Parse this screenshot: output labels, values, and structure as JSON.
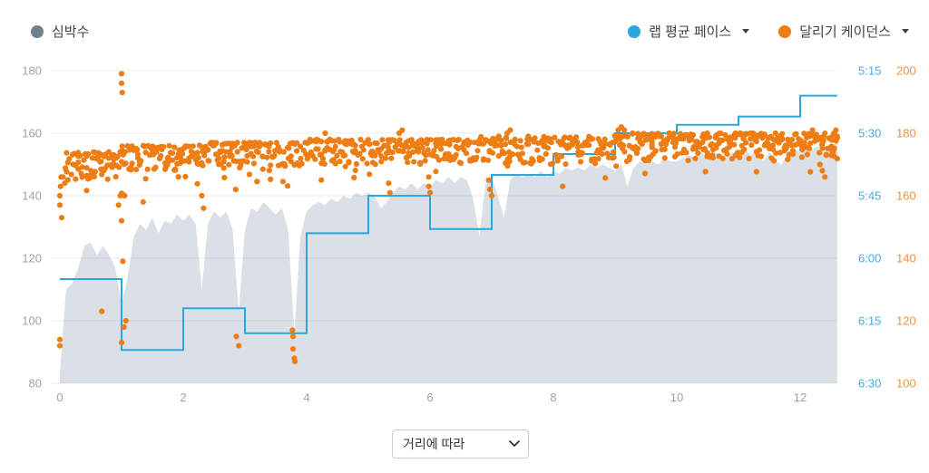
{
  "legend": {
    "heart_rate": {
      "label": "심박수",
      "dot_color": "#71808f"
    },
    "pace": {
      "label": "랩 평균 페이스",
      "dot_color": "#2aa7e0",
      "has_dropdown": true
    },
    "cadence": {
      "label": "달리기 케이던스",
      "dot_color": "#ee7d14",
      "has_dropdown": true
    }
  },
  "controls": {
    "x_mode_select": {
      "value": "거리에 따라",
      "options": [
        "거리에 따라"
      ]
    }
  },
  "chart_data": {
    "type": "mixed",
    "grid_color": "rgba(33,43,54,0.08)",
    "x_axis": {
      "ticks": [
        0,
        2,
        4,
        6,
        8,
        10,
        12
      ],
      "min": 0,
      "max": 12.6,
      "unit": "km",
      "tick_color": "#9ba4ad"
    },
    "y_axes": {
      "heart_rate": {
        "side": "left",
        "min": 80,
        "max": 180,
        "ticks": [
          180,
          160,
          140,
          120,
          100,
          80
        ],
        "tick_color": "#9ba4ad"
      },
      "pace": {
        "side": "right",
        "ticks": [
          "5:15",
          "5:30",
          "5:45",
          "6:00",
          "6:15",
          "6:30"
        ],
        "tick_color": "#45ace3"
      },
      "cadence": {
        "side": "right",
        "min": 100,
        "max": 200,
        "ticks": [
          200,
          180,
          160,
          140,
          120,
          100
        ],
        "tick_color": "#f2923c"
      }
    },
    "series": [
      {
        "name": "심박수",
        "type": "area",
        "axis": "heart_rate",
        "color": "#dae0e5",
        "points_start": 0,
        "points_step": 0.1,
        "values": [
          83,
          110,
          112,
          117,
          124,
          125,
          121,
          124,
          121,
          117,
          105,
          114,
          127,
          131,
          129,
          133,
          128,
          132,
          131,
          134,
          132,
          134,
          131,
          110,
          131,
          135,
          133,
          135,
          129,
          103,
          129,
          136,
          135,
          138,
          136,
          134,
          136,
          129,
          96,
          127,
          135,
          137,
          138,
          137,
          139,
          138,
          140,
          139,
          141,
          140,
          141,
          140,
          136,
          138,
          141,
          143,
          142,
          144,
          142,
          144,
          143,
          145,
          144,
          146,
          144,
          146,
          145,
          139,
          127,
          144,
          146,
          140,
          133,
          145,
          147,
          146,
          147,
          146,
          148,
          146,
          148,
          147,
          149,
          148,
          149,
          148,
          150,
          149,
          150,
          149,
          148,
          150,
          143,
          149,
          151,
          150,
          151,
          150,
          152,
          151,
          151,
          152,
          153,
          152,
          154,
          152,
          154,
          153,
          152,
          154,
          153,
          155,
          153,
          155,
          151,
          154,
          151,
          150,
          154,
          155,
          154,
          156,
          155,
          156,
          154,
          156,
          157
        ]
      },
      {
        "name": "랩 평균 페이스",
        "type": "step-line",
        "axis": "pace",
        "color": "#2aa7e0",
        "laps": [
          {
            "km_start": 0,
            "km_end": 1,
            "pace": "6:05"
          },
          {
            "km_start": 1,
            "km_end": 2,
            "pace": "6:22"
          },
          {
            "km_start": 2,
            "km_end": 3,
            "pace": "6:12"
          },
          {
            "km_start": 3,
            "km_end": 4,
            "pace": "6:18"
          },
          {
            "km_start": 4,
            "km_end": 5,
            "pace": "5:54"
          },
          {
            "km_start": 5,
            "km_end": 6,
            "pace": "5:45"
          },
          {
            "km_start": 6,
            "km_end": 7,
            "pace": "5:53"
          },
          {
            "km_start": 7,
            "km_end": 8,
            "pace": "5:40"
          },
          {
            "km_start": 8,
            "km_end": 9,
            "pace": "5:35"
          },
          {
            "km_start": 9,
            "km_end": 10,
            "pace": "5:30"
          },
          {
            "km_start": 10,
            "km_end": 11,
            "pace": "5:28"
          },
          {
            "km_start": 11,
            "km_end": 12,
            "pace": "5:26"
          },
          {
            "km_start": 12,
            "km_end": 12.6,
            "pace": "5:21"
          }
        ]
      },
      {
        "name": "달리기 케이던스",
        "type": "scatter",
        "axis": "cadence",
        "color": "#ee7d14",
        "band": [
          {
            "from": 0.1,
            "to": 1.0,
            "min": 165,
            "max": 174
          },
          {
            "from": 1.0,
            "to": 2.2,
            "min": 168,
            "max": 176
          },
          {
            "from": 2.2,
            "to": 4.0,
            "min": 168,
            "max": 177
          },
          {
            "from": 4.0,
            "to": 6.8,
            "min": 170,
            "max": 178
          },
          {
            "from": 6.8,
            "to": 9.0,
            "min": 170,
            "max": 179
          },
          {
            "from": 9.0,
            "to": 12.6,
            "min": 171,
            "max": 180
          }
        ],
        "outliers": [
          [
            0,
            160
          ],
          [
            0,
            157
          ],
          [
            0.01,
            163
          ],
          [
            0.02,
            166
          ],
          [
            0.03,
            153
          ],
          [
            0,
            114
          ],
          [
            0,
            112
          ],
          [
            0.05,
            166
          ],
          [
            0.08,
            164
          ],
          [
            0.68,
            123
          ],
          [
            0.95,
            157
          ],
          [
            0.98,
            160
          ],
          [
            1,
            199
          ],
          [
            1,
            196
          ],
          [
            1.01,
            193
          ],
          [
            1,
            152
          ],
          [
            1.02,
            139
          ],
          [
            1,
            113
          ],
          [
            1.04,
            118
          ],
          [
            1.05,
            160
          ],
          [
            1.07,
            120
          ],
          [
            1.35,
            158
          ],
          [
            2.3,
            160
          ],
          [
            2.33,
            156
          ],
          [
            2.85,
            162
          ],
          [
            2.86,
            115
          ],
          [
            2.9,
            112
          ],
          [
            3.77,
            117
          ],
          [
            3.78,
            115
          ],
          [
            3.78,
            111
          ],
          [
            3.8,
            108
          ],
          [
            3.81,
            107
          ],
          [
            4.3,
            180
          ],
          [
            5.33,
            164
          ],
          [
            5.35,
            161
          ],
          [
            5.5,
            180
          ],
          [
            5.55,
            181
          ],
          [
            5.98,
            166
          ],
          [
            5.98,
            163
          ],
          [
            6,
            161
          ],
          [
            6.95,
            165
          ],
          [
            6.97,
            162
          ],
          [
            7,
            160
          ],
          [
            7.25,
            180
          ],
          [
            7.3,
            181
          ],
          [
            8.15,
            163
          ],
          [
            9.05,
            181
          ],
          [
            9.1,
            182
          ],
          [
            9.15,
            181
          ],
          [
            11.2,
            180
          ],
          [
            11.6,
            180
          ],
          [
            12.2,
            181
          ],
          [
            12.32,
            170
          ],
          [
            12.36,
            168
          ],
          [
            12.4,
            166
          ],
          [
            12.5,
            178
          ],
          [
            12.55,
            180
          ],
          [
            12.58,
            181
          ],
          [
            12.6,
            179
          ]
        ]
      }
    ]
  }
}
